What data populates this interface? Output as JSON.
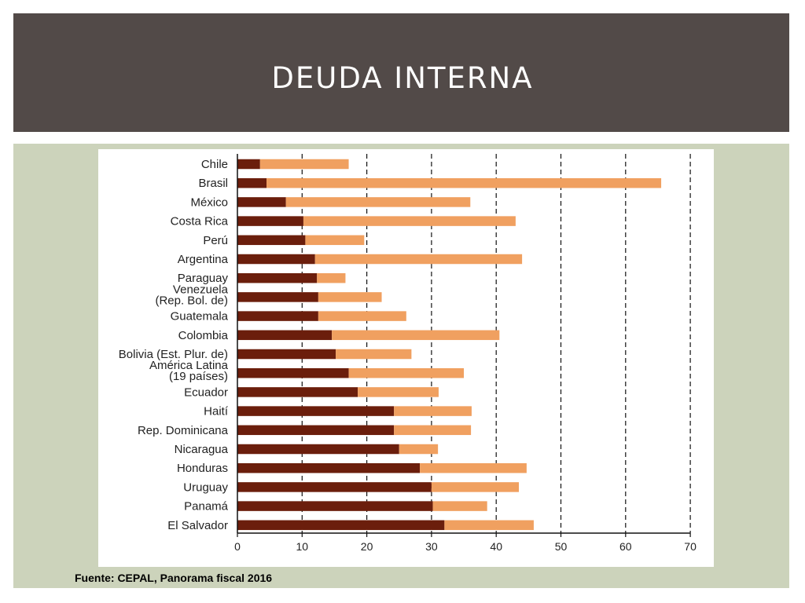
{
  "slide": {
    "title": "DEUDA INTERNA",
    "source": "Fuente: CEPAL, Panorama fiscal 2016"
  },
  "colors": {
    "header_bg": "#524a48",
    "panel_bg": "#ccd3bb",
    "series_dark": "#6b1e0c",
    "series_light": "#f0a060"
  },
  "chart_data": {
    "type": "bar",
    "orientation": "horizontal",
    "stacked": true,
    "categories": [
      [
        "Chile"
      ],
      [
        "Brasil"
      ],
      [
        "México"
      ],
      [
        "Costa Rica"
      ],
      [
        "Perú"
      ],
      [
        "Argentina"
      ],
      [
        "Paraguay"
      ],
      [
        "Venezuela",
        "(Rep. Bol. de)"
      ],
      [
        "Guatemala"
      ],
      [
        "Colombia"
      ],
      [
        "Bolivia (Est. Plur. de)"
      ],
      [
        "América Latina",
        "(19 países)"
      ],
      [
        "Ecuador"
      ],
      [
        "Haití"
      ],
      [
        "Rep. Dominicana"
      ],
      [
        "Nicaragua"
      ],
      [
        "Honduras"
      ],
      [
        "Uruguay"
      ],
      [
        "Panamá"
      ],
      [
        "El Salvador"
      ]
    ],
    "series": [
      {
        "color": "#6b1e0c",
        "values": [
          3.5,
          4.5,
          7.5,
          10.2,
          10.5,
          12.0,
          12.3,
          12.5,
          12.5,
          14.6,
          15.2,
          17.2,
          18.6,
          24.2,
          24.2,
          25.0,
          28.2,
          30.0,
          30.2,
          32.0
        ]
      },
      {
        "color": "#f0a060",
        "values": [
          13.7,
          61.0,
          28.5,
          32.8,
          9.1,
          32.0,
          4.4,
          9.8,
          13.6,
          25.9,
          11.7,
          17.8,
          12.5,
          12.0,
          11.9,
          6.0,
          16.5,
          13.5,
          8.4,
          13.8
        ]
      }
    ],
    "xticks": [
      "0",
      "10",
      "20",
      "30",
      "40",
      "50",
      "60",
      "70"
    ],
    "xlim": [
      0,
      70
    ],
    "grid": "vertical dashed",
    "xlabel": "",
    "ylabel": ""
  }
}
